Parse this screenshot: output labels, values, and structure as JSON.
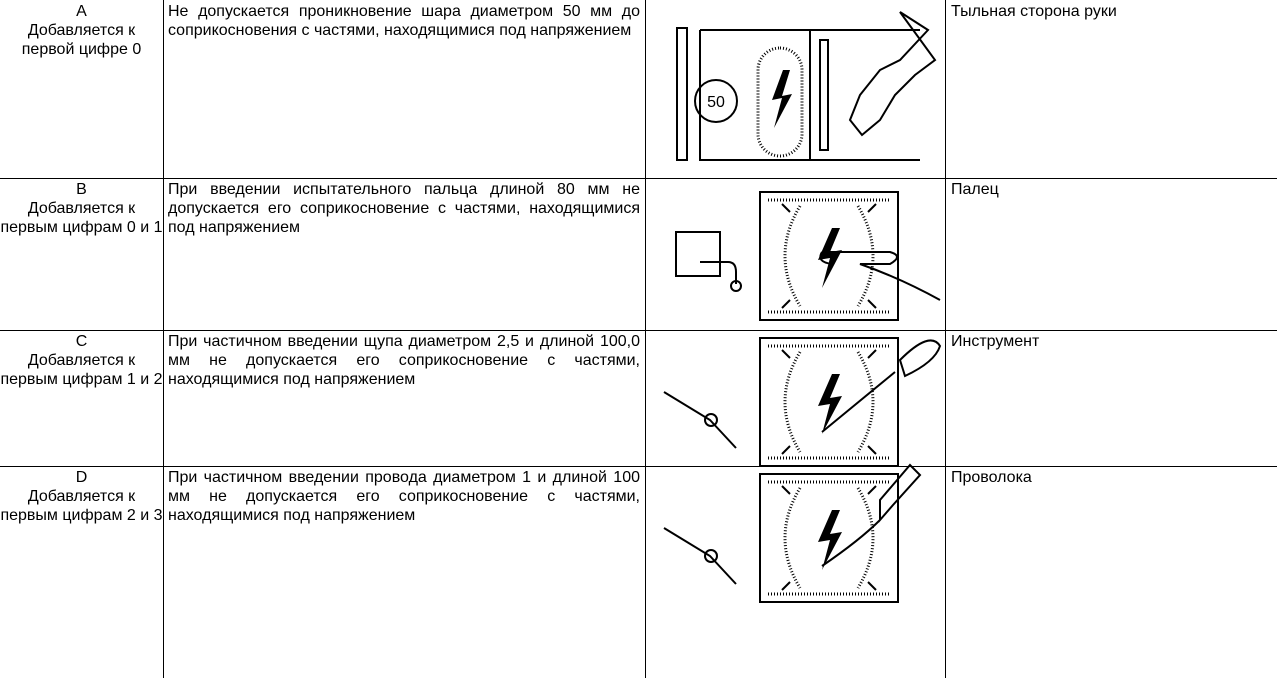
{
  "table": {
    "rows": [
      {
        "code": "A",
        "note": "Добавляется к первой цифре 0",
        "description": "Не допускается проникновение шара диаметром 50 мм до соприкосновения с частями, находящимися под напряжением",
        "access": "Тыльная сторона руки"
      },
      {
        "code": "B",
        "note": "Добавляется к первым цифрам 0 и 1",
        "description": "При введении испытательного пальца длиной 80 мм не допускается его соприкосновение с частями, находящимися под напряжением",
        "access": "Палец"
      },
      {
        "code": "C",
        "note": "Добавляется к первым цифрам 1 и 2",
        "description": "При частичном введении щупа диаметром 2,5 и длиной 100,0 мм не допускается его соприкосновение с частями, находящимися под напряжением",
        "access": "Инструмент"
      },
      {
        "code": "D",
        "note": "Добавляется к первым цифрам 2 и 3",
        "description": "При частичном введении провода диаметром 1 и длиной 100 мм не допускается его соприкосновение с частями, находящимися под напряжением",
        "access": "Проволока"
      }
    ]
  }
}
